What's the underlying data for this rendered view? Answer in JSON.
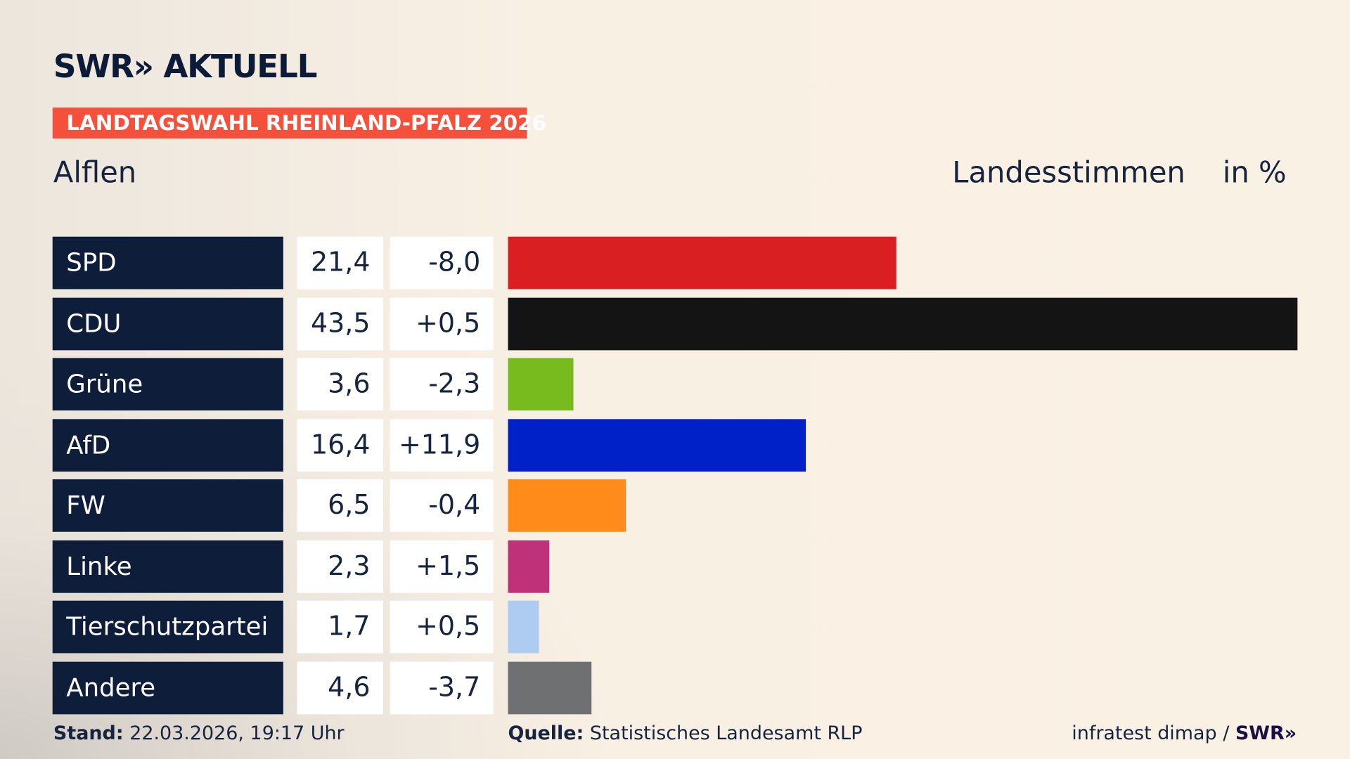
{
  "header": {
    "logo": "SWR» AKTUELL",
    "badge": "LANDTAGSWAHL RHEINLAND-PFALZ 2026",
    "place": "Alflen",
    "vote_type": "Landesstimmen",
    "unit": "in %"
  },
  "chart_data": {
    "type": "bar",
    "orientation": "horizontal",
    "categories": [
      "SPD",
      "CDU",
      "Grüne",
      "AfD",
      "FW",
      "Linke",
      "Tierschutzpartei",
      "Andere"
    ],
    "values": [
      21.4,
      43.5,
      3.6,
      16.4,
      6.5,
      2.3,
      1.7,
      4.6
    ],
    "value_labels": [
      "21,4",
      "43,5",
      "3,6",
      "16,4",
      "6,5",
      "2,3",
      "1,7",
      "4,6"
    ],
    "changes": [
      "-8,0",
      "+0,5",
      "-2,3",
      "+11,9",
      "-0,4",
      "+1,5",
      "+0,5",
      "-3,7"
    ],
    "colors": [
      "#d91f21",
      "#141414",
      "#78bb1e",
      "#0021c8",
      "#ff8c1a",
      "#bf3178",
      "#aecbf2",
      "#6f7072"
    ],
    "xlim": [
      0,
      43.5
    ]
  },
  "footer": {
    "stand_label": "Stand:",
    "stand_value": "22.03.2026, 19:17 Uhr",
    "source_label": "Quelle:",
    "source_value": "Statistisches Landesamt RLP",
    "credit": "infratest dimap / ",
    "credit_logo": "SWR»"
  }
}
